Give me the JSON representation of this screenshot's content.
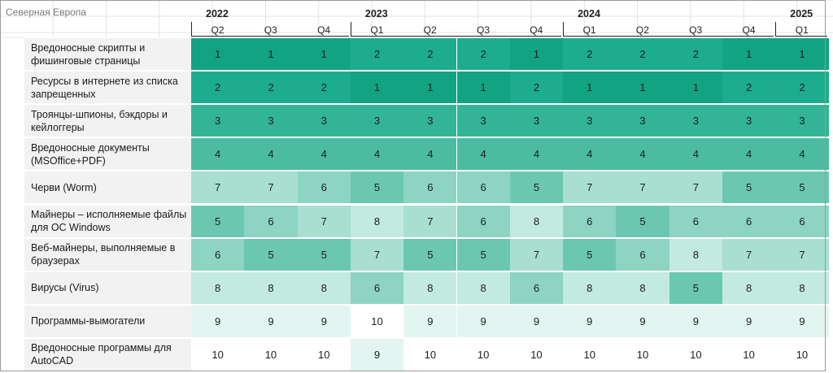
{
  "region_label": "Северная Европа",
  "chart_data": {
    "type": "heatmap",
    "years": [
      {
        "label": "2022",
        "quarters": [
          "Q2",
          "Q3",
          "Q4"
        ]
      },
      {
        "label": "2023",
        "quarters": [
          "Q1",
          "Q2",
          "Q3",
          "Q4"
        ]
      },
      {
        "label": "2024",
        "quarters": [
          "Q1",
          "Q2",
          "Q3",
          "Q4"
        ]
      },
      {
        "label": "2025",
        "quarters": [
          "Q1"
        ]
      }
    ],
    "rows": [
      {
        "label": "Вредоносные скрипты и фишинговые страницы",
        "values": [
          1,
          1,
          1,
          2,
          2,
          2,
          1,
          2,
          2,
          2,
          1,
          1
        ]
      },
      {
        "label": "Ресурсы в интернете из списка запрещенных",
        "values": [
          2,
          2,
          2,
          1,
          1,
          1,
          2,
          1,
          1,
          1,
          2,
          2
        ]
      },
      {
        "label": "Троянцы-шпионы, бэкдоры и кейлоггеры",
        "values": [
          3,
          3,
          3,
          3,
          3,
          3,
          3,
          3,
          3,
          3,
          3,
          3
        ]
      },
      {
        "label": "Вредоносные документы (MSOffice+PDF)",
        "values": [
          4,
          4,
          4,
          4,
          4,
          4,
          4,
          4,
          4,
          4,
          4,
          4
        ]
      },
      {
        "label": "Черви (Worm)",
        "values": [
          7,
          7,
          6,
          5,
          6,
          6,
          5,
          7,
          7,
          7,
          5,
          5
        ]
      },
      {
        "label": "Майнеры – исполняемые файлы для ОС Windows",
        "values": [
          5,
          6,
          7,
          8,
          7,
          6,
          8,
          6,
          5,
          6,
          6,
          6
        ]
      },
      {
        "label": "Веб-майнеры, выполняемые в браузерах",
        "values": [
          6,
          5,
          5,
          7,
          5,
          5,
          7,
          5,
          6,
          8,
          7,
          7
        ]
      },
      {
        "label": "Вирусы (Virus)",
        "values": [
          8,
          8,
          8,
          6,
          8,
          8,
          6,
          8,
          8,
          5,
          8,
          8
        ]
      },
      {
        "label": "Программы-вымогатели",
        "values": [
          9,
          9,
          9,
          10,
          9,
          9,
          9,
          9,
          9,
          9,
          9,
          9
        ]
      },
      {
        "label": "Вредоносные программы для AutoCAD",
        "values": [
          10,
          10,
          10,
          9,
          10,
          10,
          10,
          10,
          10,
          10,
          10,
          10
        ]
      }
    ],
    "colors": {
      "1": "#12a383",
      "2": "#1dad8e",
      "3": "#33b497",
      "4": "#4bbca2",
      "5": "#6cc7b1",
      "6": "#8dd4c2",
      "7": "#a8dfd1",
      "8": "#c3eadf",
      "9": "#e3f5f0",
      "10": "#ffffff"
    },
    "label_bg": "#f2f2f2"
  }
}
